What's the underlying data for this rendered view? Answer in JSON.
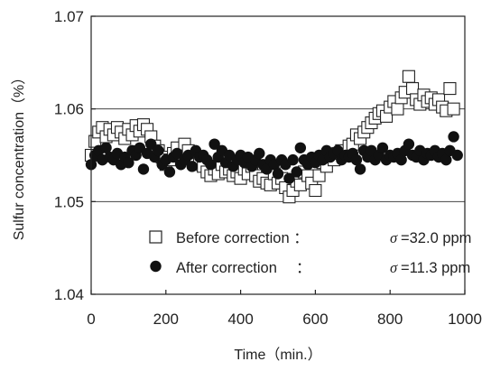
{
  "chart_data": {
    "type": "scatter",
    "xlabel": "Time（min.）",
    "ylabel": "Sulfur concentration（%）",
    "xlim": [
      0,
      1000
    ],
    "ylim": [
      1.04,
      1.07
    ],
    "x_ticks": [
      "0",
      "200",
      "400",
      "600",
      "800",
      "1000"
    ],
    "y_ticks": [
      "1.04",
      "1.05",
      "1.06",
      "1.07"
    ],
    "grid": "horizontal",
    "legend_position": "bottom-right",
    "series": [
      {
        "name": "Before correction",
        "marker": "open-square",
        "legend_label": "Before correction ：",
        "sigma_symbol": "σ",
        "sigma_text": "=32.0 ppm",
        "points": [
          [
            0,
            1.055
          ],
          [
            10,
            1.0565
          ],
          [
            20,
            1.0575
          ],
          [
            30,
            1.058
          ],
          [
            40,
            1.057
          ],
          [
            50,
            1.0578
          ],
          [
            60,
            1.0572
          ],
          [
            70,
            1.058
          ],
          [
            80,
            1.0575
          ],
          [
            90,
            1.0568
          ],
          [
            100,
            1.0578
          ],
          [
            110,
            1.0572
          ],
          [
            120,
            1.0582
          ],
          [
            130,
            1.0576
          ],
          [
            140,
            1.0583
          ],
          [
            150,
            1.0578
          ],
          [
            160,
            1.057
          ],
          [
            170,
            1.056
          ],
          [
            180,
            1.0555
          ],
          [
            190,
            1.0548
          ],
          [
            200,
            1.054
          ],
          [
            210,
            1.0545
          ],
          [
            220,
            1.0552
          ],
          [
            230,
            1.0558
          ],
          [
            240,
            1.055
          ],
          [
            250,
            1.0562
          ],
          [
            260,
            1.0555
          ],
          [
            270,
            1.0548
          ],
          [
            280,
            1.054
          ],
          [
            290,
            1.0545
          ],
          [
            300,
            1.0538
          ],
          [
            310,
            1.0532
          ],
          [
            320,
            1.0528
          ],
          [
            330,
            1.0535
          ],
          [
            340,
            1.053
          ],
          [
            350,
            1.054
          ],
          [
            360,
            1.0532
          ],
          [
            370,
            1.0535
          ],
          [
            380,
            1.0528
          ],
          [
            390,
            1.0532
          ],
          [
            400,
            1.0525
          ],
          [
            410,
            1.0535
          ],
          [
            420,
            1.053
          ],
          [
            430,
            1.0538
          ],
          [
            440,
            1.0528
          ],
          [
            450,
            1.0522
          ],
          [
            460,
            1.0525
          ],
          [
            470,
            1.052
          ],
          [
            480,
            1.0518
          ],
          [
            490,
            1.053
          ],
          [
            500,
            1.052
          ],
          [
            510,
            1.0525
          ],
          [
            520,
            1.0515
          ],
          [
            530,
            1.0505
          ],
          [
            540,
            1.0512
          ],
          [
            550,
            1.0522
          ],
          [
            560,
            1.0518
          ],
          [
            570,
            1.0532
          ],
          [
            580,
            1.0528
          ],
          [
            590,
            1.052
          ],
          [
            600,
            1.0512
          ],
          [
            610,
            1.0528
          ],
          [
            620,
            1.0542
          ],
          [
            630,
            1.0538
          ],
          [
            640,
            1.0548
          ],
          [
            650,
            1.0545
          ],
          [
            660,
            1.0552
          ],
          [
            670,
            1.0555
          ],
          [
            680,
            1.055
          ],
          [
            690,
            1.056
          ],
          [
            700,
            1.0562
          ],
          [
            710,
            1.0572
          ],
          [
            720,
            1.0568
          ],
          [
            730,
            1.0575
          ],
          [
            740,
            1.058
          ],
          [
            750,
            1.0585
          ],
          [
            760,
            1.059
          ],
          [
            770,
            1.0595
          ],
          [
            780,
            1.0598
          ],
          [
            790,
            1.0592
          ],
          [
            800,
            1.0602
          ],
          [
            810,
            1.0608
          ],
          [
            820,
            1.06
          ],
          [
            830,
            1.0612
          ],
          [
            840,
            1.0618
          ],
          [
            850,
            1.0635
          ],
          [
            860,
            1.0622
          ],
          [
            870,
            1.061
          ],
          [
            880,
            1.0605
          ],
          [
            890,
            1.0615
          ],
          [
            900,
            1.0608
          ],
          [
            910,
            1.0612
          ],
          [
            920,
            1.0605
          ],
          [
            930,
            1.061
          ],
          [
            940,
            1.0602
          ],
          [
            950,
            1.0598
          ],
          [
            960,
            1.0622
          ],
          [
            970,
            1.06
          ]
        ]
      },
      {
        "name": "After correction",
        "marker": "filled-circle",
        "legend_label": "After correction　 ：",
        "sigma_symbol": "σ",
        "sigma_text": "=11.3 ppm",
        "points": [
          [
            0,
            1.054
          ],
          [
            10,
            1.055
          ],
          [
            20,
            1.0555
          ],
          [
            30,
            1.0545
          ],
          [
            40,
            1.0558
          ],
          [
            50,
            1.0548
          ],
          [
            60,
            1.0545
          ],
          [
            70,
            1.0552
          ],
          [
            80,
            1.054
          ],
          [
            90,
            1.0548
          ],
          [
            100,
            1.0542
          ],
          [
            110,
            1.0555
          ],
          [
            120,
            1.055
          ],
          [
            130,
            1.0558
          ],
          [
            140,
            1.0535
          ],
          [
            150,
            1.0552
          ],
          [
            160,
            1.0562
          ],
          [
            170,
            1.0548
          ],
          [
            180,
            1.0555
          ],
          [
            190,
            1.054
          ],
          [
            200,
            1.0545
          ],
          [
            210,
            1.0532
          ],
          [
            220,
            1.0548
          ],
          [
            230,
            1.0552
          ],
          [
            240,
            1.054
          ],
          [
            250,
            1.0545
          ],
          [
            260,
            1.055
          ],
          [
            270,
            1.0538
          ],
          [
            280,
            1.0555
          ],
          [
            290,
            1.0548
          ],
          [
            300,
            1.055
          ],
          [
            310,
            1.0545
          ],
          [
            320,
            1.054
          ],
          [
            330,
            1.0562
          ],
          [
            340,
            1.0548
          ],
          [
            350,
            1.0555
          ],
          [
            360,
            1.0542
          ],
          [
            370,
            1.055
          ],
          [
            380,
            1.0538
          ],
          [
            390,
            1.0545
          ],
          [
            400,
            1.055
          ],
          [
            410,
            1.0542
          ],
          [
            420,
            1.0548
          ],
          [
            430,
            1.0538
          ],
          [
            440,
            1.0545
          ],
          [
            450,
            1.0552
          ],
          [
            460,
            1.054
          ],
          [
            470,
            1.0535
          ],
          [
            480,
            1.0545
          ],
          [
            490,
            1.054
          ],
          [
            500,
            1.053
          ],
          [
            510,
            1.0545
          ],
          [
            520,
            1.054
          ],
          [
            530,
            1.0525
          ],
          [
            540,
            1.0545
          ],
          [
            550,
            1.0532
          ],
          [
            560,
            1.0558
          ],
          [
            570,
            1.0545
          ],
          [
            580,
            1.054
          ],
          [
            590,
            1.0548
          ],
          [
            600,
            1.0542
          ],
          [
            610,
            1.055
          ],
          [
            620,
            1.0545
          ],
          [
            630,
            1.0555
          ],
          [
            640,
            1.0548
          ],
          [
            650,
            1.0552
          ],
          [
            660,
            1.0555
          ],
          [
            670,
            1.0545
          ],
          [
            680,
            1.055
          ],
          [
            690,
            1.0548
          ],
          [
            700,
            1.0552
          ],
          [
            710,
            1.0545
          ],
          [
            720,
            1.0535
          ],
          [
            730,
            1.0555
          ],
          [
            740,
            1.0548
          ],
          [
            750,
            1.0555
          ],
          [
            760,
            1.0545
          ],
          [
            770,
            1.055
          ],
          [
            780,
            1.0558
          ],
          [
            790,
            1.0545
          ],
          [
            800,
            1.055
          ],
          [
            810,
            1.0548
          ],
          [
            820,
            1.0552
          ],
          [
            830,
            1.0545
          ],
          [
            840,
            1.0555
          ],
          [
            850,
            1.0562
          ],
          [
            860,
            1.055
          ],
          [
            870,
            1.0548
          ],
          [
            880,
            1.0555
          ],
          [
            890,
            1.0545
          ],
          [
            900,
            1.0552
          ],
          [
            910,
            1.055
          ],
          [
            920,
            1.0555
          ],
          [
            930,
            1.0548
          ],
          [
            940,
            1.0552
          ],
          [
            950,
            1.0545
          ],
          [
            960,
            1.0555
          ],
          [
            970,
            1.057
          ],
          [
            980,
            1.055
          ]
        ]
      }
    ]
  }
}
